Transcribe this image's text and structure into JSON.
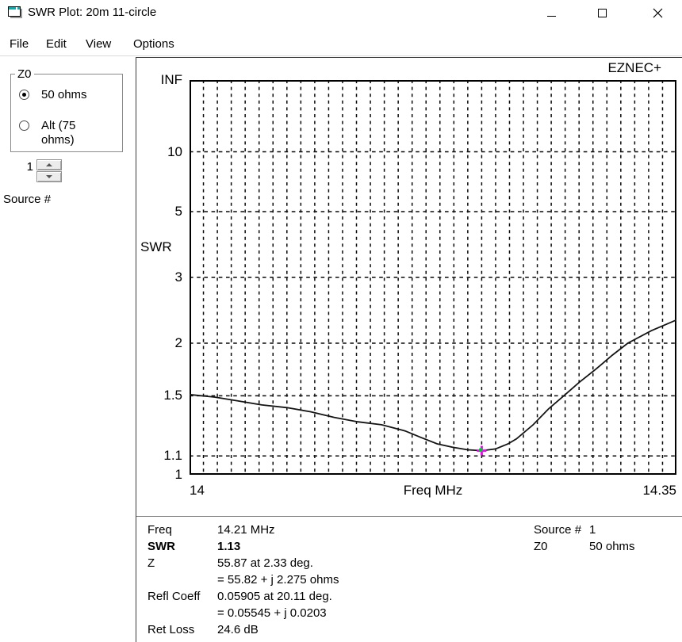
{
  "window": {
    "title": "SWR Plot: 20m 11-circle"
  },
  "menu": {
    "items": [
      "File",
      "Edit",
      "View",
      "Options"
    ]
  },
  "sidebar": {
    "z0_group": {
      "label": "Z0",
      "options": [
        {
          "label": "50 ohms",
          "selected": true
        },
        {
          "label": "Alt (75 ohms)",
          "selected": false
        }
      ]
    },
    "source_spinner": {
      "value": "1",
      "label": "Source #"
    }
  },
  "plot": {
    "brand": "EZNEC+"
  },
  "chart_data": {
    "type": "line",
    "title": "",
    "xlabel": "Freq MHz",
    "ylabel": "SWR",
    "x_range": [
      14,
      14.35
    ],
    "x_tick_labels": [
      "14",
      "14.35"
    ],
    "x_grid_step_mhz": 0.01,
    "y_scale": "linear-in-reflection-coefficient",
    "y_ticks": [
      {
        "label": "INF",
        "swr": null,
        "grid": false
      },
      {
        "label": "10",
        "swr": 10,
        "grid": true
      },
      {
        "label": "5",
        "swr": 5,
        "grid": true
      },
      {
        "label": "3",
        "swr": 3,
        "grid": true
      },
      {
        "label": "2",
        "swr": 2,
        "grid": true
      },
      {
        "label": "1.5",
        "swr": 1.5,
        "grid": true
      },
      {
        "label": "1.1",
        "swr": 1.1,
        "grid": true
      },
      {
        "label": "1",
        "swr": 1,
        "grid": false
      }
    ],
    "series": [
      {
        "name": "SWR vs frequency",
        "points": [
          [
            14.0,
            1.51
          ],
          [
            14.018,
            1.49
          ],
          [
            14.035,
            1.46
          ],
          [
            14.052,
            1.43
          ],
          [
            14.07,
            1.41
          ],
          [
            14.087,
            1.38
          ],
          [
            14.104,
            1.34
          ],
          [
            14.121,
            1.31
          ],
          [
            14.138,
            1.29
          ],
          [
            14.155,
            1.25
          ],
          [
            14.166,
            1.21
          ],
          [
            14.178,
            1.17
          ],
          [
            14.189,
            1.15
          ],
          [
            14.2,
            1.135
          ],
          [
            14.21,
            1.13
          ],
          [
            14.22,
            1.14
          ],
          [
            14.229,
            1.17
          ],
          [
            14.235,
            1.2
          ],
          [
            14.247,
            1.29
          ],
          [
            14.258,
            1.4
          ],
          [
            14.269,
            1.5
          ],
          [
            14.28,
            1.61
          ],
          [
            14.292,
            1.73
          ],
          [
            14.304,
            1.87
          ],
          [
            14.315,
            2.0
          ],
          [
            14.332,
            2.15
          ],
          [
            14.35,
            2.29
          ]
        ]
      }
    ],
    "cursor": {
      "freq": 14.21,
      "swr": 1.13
    },
    "colors": {
      "curve": "#141414",
      "grid": "#0a0a0a",
      "cursor_cross": "#ff00ff",
      "cursor_dot": "#00c830"
    }
  },
  "readout": {
    "rows": [
      {
        "label": "Freq",
        "value": "14.21 MHz",
        "bold": false
      },
      {
        "label": "SWR",
        "value": "1.13",
        "bold": true
      },
      {
        "label": "Z",
        "value": "55.87 at 2.33 deg.",
        "bold": false
      },
      {
        "label": "",
        "value": "= 55.82 + j 2.275 ohms",
        "bold": false
      },
      {
        "label": "Refl Coeff",
        "value": "0.05905 at 20.11 deg.",
        "bold": false
      },
      {
        "label": "",
        "value": "= 0.05545 + j 0.0203",
        "bold": false
      },
      {
        "label": "Ret Loss",
        "value": "24.6 dB",
        "bold": false
      }
    ],
    "right_rows": [
      {
        "label": "Source #",
        "value": "1"
      },
      {
        "label": "Z0",
        "value": "50 ohms"
      }
    ]
  }
}
